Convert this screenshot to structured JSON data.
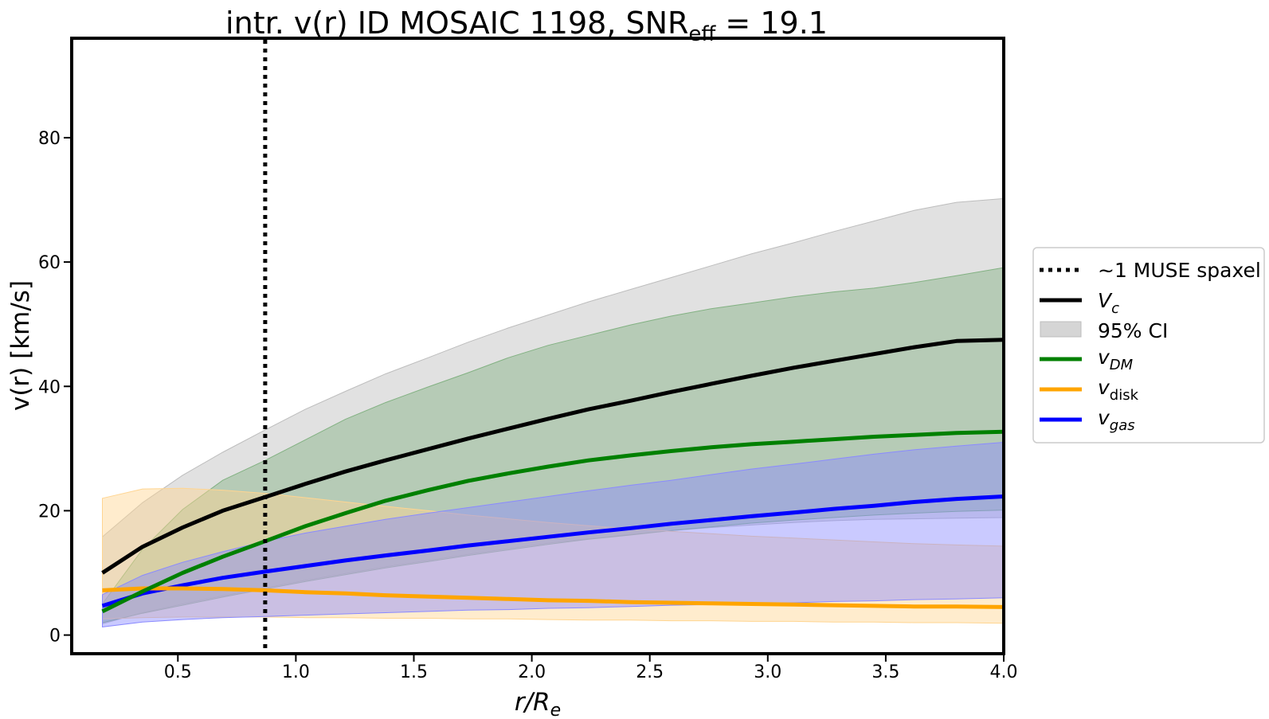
{
  "chart_data": {
    "type": "line",
    "title_main": "intr. v(r) ID MOSAIC 1198, SNR",
    "title_sub": "eff",
    "title_tail": " = 19.1",
    "xlabel_main": "r/R",
    "xlabel_sub": "e",
    "ylabel": "v(r) [km/s]",
    "xlim": [
      0.05,
      4.0
    ],
    "ylim": [
      -3,
      96
    ],
    "xticks": [
      0.5,
      1.0,
      1.5,
      2.0,
      2.5,
      3.0,
      3.5,
      4.0
    ],
    "xtick_labels": [
      "0.5",
      "1.0",
      "1.5",
      "2.0",
      "2.5",
      "3.0",
      "3.5",
      "4.0"
    ],
    "yticks": [
      0,
      20,
      40,
      60,
      80
    ],
    "ytick_labels": [
      "0",
      "20",
      "40",
      "60",
      "80"
    ],
    "vline": {
      "x": 0.87,
      "label": "~1 MUSE spaxel",
      "style": "dotted",
      "color": "#000000"
    },
    "x": [
      0.18,
      0.35,
      0.52,
      0.69,
      0.87,
      1.04,
      1.21,
      1.38,
      1.56,
      1.73,
      1.9,
      2.07,
      2.24,
      2.42,
      2.59,
      2.76,
      2.93,
      3.11,
      3.28,
      3.45,
      3.62,
      3.8,
      4.0
    ],
    "series": [
      {
        "name": "Vc",
        "legend_main": "V",
        "legend_sub": "c",
        "sub_italic": true,
        "color": "#000000",
        "values": [
          10.0,
          14.2,
          17.3,
          20.0,
          22.2,
          24.3,
          26.3,
          28.1,
          29.9,
          31.6,
          33.2,
          34.8,
          36.3,
          37.7,
          39.1,
          40.4,
          41.7,
          43.0,
          44.1,
          45.2,
          46.3,
          47.3,
          47.5
        ],
        "band_low": [
          1.8,
          3.6,
          5.0,
          6.3,
          7.6,
          8.8,
          9.9,
          11.0,
          12.0,
          13.0,
          13.9,
          14.8,
          15.5,
          16.2,
          16.8,
          17.3,
          17.7,
          18.1,
          18.4,
          18.6,
          18.7,
          18.8,
          18.9
        ],
        "band_high": [
          15.8,
          21.3,
          25.7,
          29.4,
          33.0,
          36.3,
          39.2,
          42.0,
          44.6,
          47.1,
          49.4,
          51.5,
          53.6,
          55.6,
          57.5,
          59.4,
          61.3,
          63.1,
          64.9,
          66.6,
          68.3,
          69.6,
          70.2
        ],
        "band_color": "#bdbdbd"
      },
      {
        "name": "vDM",
        "legend_main": "v",
        "legend_sub": "DM",
        "sub_italic": true,
        "color": "#008000",
        "values": [
          3.8,
          7.0,
          10.0,
          12.6,
          15.1,
          17.5,
          19.6,
          21.6,
          23.3,
          24.8,
          26.0,
          27.1,
          28.1,
          28.9,
          29.6,
          30.2,
          30.7,
          31.1,
          31.5,
          31.9,
          32.2,
          32.5,
          32.7
        ],
        "band_low": [
          2.0,
          3.5,
          4.8,
          6.1,
          7.4,
          8.6,
          9.7,
          10.8,
          11.8,
          12.8,
          13.7,
          14.6,
          15.4,
          16.1,
          16.8,
          17.4,
          18.0,
          18.5,
          18.9,
          19.3,
          19.6,
          19.9,
          20.1
        ],
        "band_high": [
          5.0,
          13.8,
          20.2,
          24.9,
          28.1,
          31.4,
          34.7,
          37.4,
          39.9,
          42.2,
          44.6,
          46.6,
          48.2,
          49.9,
          51.3,
          52.5,
          53.4,
          54.4,
          55.2,
          55.8,
          56.7,
          57.8,
          59.1
        ],
        "band_color": "#82b182"
      },
      {
        "name": "vdisk",
        "legend_main": "v",
        "legend_sub": "disk",
        "sub_italic": false,
        "color": "#ffa500",
        "values": [
          7.2,
          7.5,
          7.5,
          7.4,
          7.2,
          6.9,
          6.7,
          6.4,
          6.2,
          6.0,
          5.8,
          5.6,
          5.5,
          5.3,
          5.2,
          5.1,
          5.0,
          4.9,
          4.8,
          4.7,
          4.6,
          4.6,
          4.5
        ],
        "band_low": [
          2.6,
          2.8,
          2.9,
          2.9,
          2.9,
          2.8,
          2.8,
          2.7,
          2.7,
          2.6,
          2.6,
          2.5,
          2.4,
          2.4,
          2.3,
          2.3,
          2.2,
          2.2,
          2.1,
          2.1,
          2.0,
          2.0,
          1.9
        ],
        "band_high": [
          22.0,
          23.5,
          23.6,
          23.3,
          22.8,
          22.1,
          21.4,
          20.7,
          20.0,
          19.3,
          18.7,
          18.1,
          17.6,
          17.1,
          16.7,
          16.3,
          15.9,
          15.6,
          15.3,
          15.0,
          14.7,
          14.5,
          14.3
        ],
        "band_color": "#ffd591"
      },
      {
        "name": "vgas",
        "legend_main": "v",
        "legend_sub": "gas",
        "sub_italic": true,
        "color": "#0000ff",
        "values": [
          4.7,
          6.7,
          8.0,
          9.2,
          10.2,
          11.1,
          12.0,
          12.8,
          13.6,
          14.4,
          15.1,
          15.8,
          16.5,
          17.2,
          17.9,
          18.5,
          19.1,
          19.7,
          20.3,
          20.8,
          21.4,
          21.9,
          22.3
        ],
        "band_low": [
          1.3,
          2.1,
          2.5,
          2.8,
          3.0,
          3.2,
          3.4,
          3.6,
          3.8,
          4.0,
          4.1,
          4.3,
          4.4,
          4.6,
          4.8,
          4.9,
          5.1,
          5.2,
          5.4,
          5.5,
          5.7,
          5.8,
          6.0
        ],
        "band_high": [
          6.5,
          9.6,
          11.7,
          13.4,
          15.1,
          16.4,
          17.5,
          18.6,
          19.6,
          20.5,
          21.4,
          22.3,
          23.2,
          24.1,
          24.9,
          25.8,
          26.7,
          27.5,
          28.3,
          29.1,
          29.8,
          30.4,
          31.0
        ],
        "band_color": "#8a8aff"
      }
    ],
    "legend": {
      "position": "center-right",
      "ci_label": "95% CI",
      "ci_color": "#d5d5d5"
    }
  }
}
